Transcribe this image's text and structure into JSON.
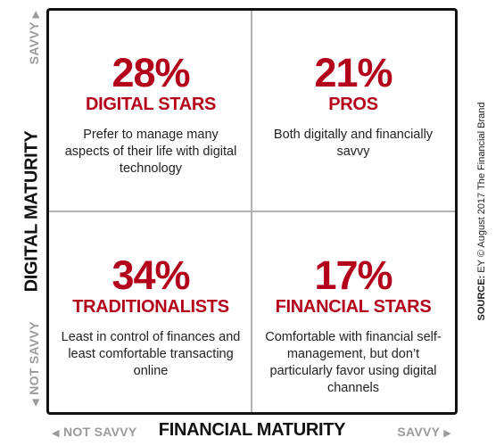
{
  "quadrants": {
    "top_left": {
      "percent": "28%",
      "label": "DIGITAL STARS",
      "description": "Prefer to manage many aspects of their life with digital technology"
    },
    "top_right": {
      "percent": "21%",
      "label": "PROS",
      "description": "Both digitally and financially savvy"
    },
    "bottom_left": {
      "percent": "34%",
      "label": "TRADITIONALISTS",
      "description": "Least in control of finances and least comfortable transacting online"
    },
    "bottom_right": {
      "percent": "17%",
      "label": "FINANCIAL STARS",
      "description": "Comfortable with financial self-management, but don’t particularly favor using digital channels"
    }
  },
  "axes": {
    "y_title": "DIGITAL MATURITY",
    "y_high": "SAVVY",
    "y_low": "NOT SAVVY",
    "x_title": "FINANCIAL MATURITY",
    "x_low": "NOT SAVVY",
    "x_high": "SAVVY"
  },
  "source": {
    "prefix": "SOURCE:",
    "text": "EY © August 2017 The Financial Brand"
  },
  "colors": {
    "accent": "#b3001b",
    "axis_label": "#9a9a9a",
    "divider": "#b3b3b3",
    "frame": "#111111"
  }
}
